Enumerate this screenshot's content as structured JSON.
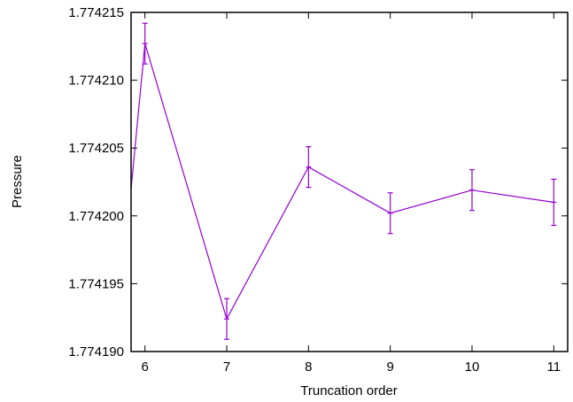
{
  "chart_data": {
    "type": "line",
    "xlabel": "Truncation order",
    "ylabel": "Pressure",
    "xlim": [
      5.83,
      11.17
    ],
    "ylim": [
      1.77419,
      1.774215
    ],
    "xticks": [
      6,
      7,
      8,
      9,
      10,
      11
    ],
    "yticks": [
      "1.774190",
      "1.774195",
      "1.774200",
      "1.774205",
      "1.774210",
      "1.774215"
    ],
    "grid": false,
    "legend": "none",
    "series": [
      {
        "color": "#9400d3",
        "x": [
          6,
          7,
          8,
          9,
          10,
          11
        ],
        "y": [
          1.7742127,
          1.7741924,
          1.7742036,
          1.7742002,
          1.7742019,
          1.774201
        ],
        "err": [
          1.5e-06,
          1.5e-06,
          1.5e-06,
          1.5e-06,
          1.5e-06,
          1.7e-06
        ]
      }
    ],
    "left_edge_y": 1.774202
  }
}
